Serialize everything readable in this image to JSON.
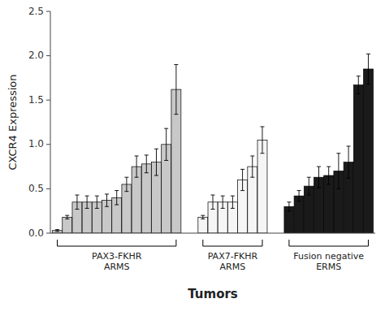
{
  "chart_data": {
    "type": "bar",
    "ylabel": "CXCR4 Expression",
    "xlabel": "Tumors",
    "series": [
      {
        "name": "PAX3-FKHR\nARMS",
        "color": "#c8c8c8",
        "values": [
          0.03,
          0.18,
          0.35,
          0.35,
          0.35,
          0.37,
          0.4,
          0.55,
          0.75,
          0.78,
          0.8,
          1.0,
          1.62
        ],
        "errors": [
          0.01,
          0.02,
          0.08,
          0.07,
          0.07,
          0.07,
          0.08,
          0.08,
          0.12,
          0.1,
          0.15,
          0.18,
          0.28
        ]
      },
      {
        "name": "PAX7-FKHR\nARMS",
        "color": "#f5f5f5",
        "values": [
          0.18,
          0.35,
          0.35,
          0.35,
          0.6,
          0.75,
          1.05
        ],
        "errors": [
          0.02,
          0.08,
          0.07,
          0.07,
          0.12,
          0.12,
          0.15
        ]
      },
      {
        "name": "Fusion negative\nERMS",
        "color": "#1a1a1a",
        "values": [
          0.3,
          0.42,
          0.53,
          0.63,
          0.65,
          0.7,
          0.8,
          1.67,
          1.85
        ],
        "errors": [
          0.05,
          0.06,
          0.1,
          0.12,
          0.1,
          0.2,
          0.18,
          0.1,
          0.17
        ]
      }
    ],
    "ylim": [
      0,
      2.5
    ],
    "yticks": [
      {
        "value": 0,
        "label": "0.0"
      },
      0.5,
      {
        "value": 1.0,
        "label": "1.0"
      },
      1.5,
      {
        "value": 2.0,
        "label": "2.0"
      },
      2.5
    ],
    "grid": false,
    "tick_labels": "y"
  }
}
